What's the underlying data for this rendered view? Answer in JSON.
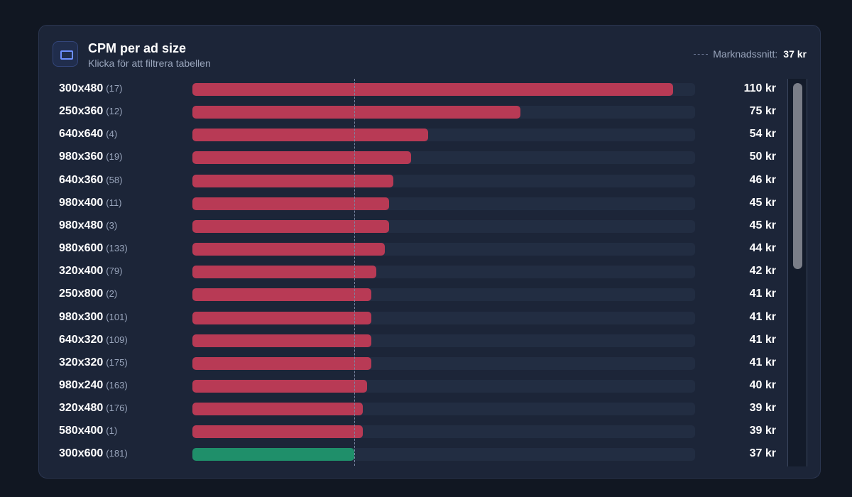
{
  "header": {
    "title": "CPM per ad size",
    "subtitle": "Klicka för att filtrera tabellen",
    "market_label": "Marknadssnitt:",
    "market_value": "37 kr"
  },
  "colors": {
    "above_average": "#b83a55",
    "at_average": "#1f8f6a"
  },
  "chart_data": {
    "type": "bar",
    "orientation": "horizontal",
    "title": "CPM per ad size",
    "unit": "kr",
    "xlim": [
      0,
      115
    ],
    "reference_line": {
      "label": "Marknadssnitt:",
      "value": 37
    },
    "categories": [
      "300x480",
      "250x360",
      "640x640",
      "980x360",
      "640x360",
      "980x400",
      "980x480",
      "980x600",
      "320x400",
      "250x800",
      "980x300",
      "640x320",
      "320x320",
      "980x240",
      "320x480",
      "580x400",
      "300x600"
    ],
    "counts": [
      "(17)",
      "(12)",
      "(4)",
      "(19)",
      "(58)",
      "(11)",
      "(3)",
      "(133)",
      "(79)",
      "(2)",
      "(101)",
      "(109)",
      "(175)",
      "(163)",
      "(176)",
      "(1)",
      "(181)"
    ],
    "values": [
      110,
      75,
      54,
      50,
      46,
      45,
      45,
      44,
      42,
      41,
      41,
      41,
      41,
      40,
      39,
      39,
      37
    ],
    "value_labels": [
      "110 kr",
      "75 kr",
      "54 kr",
      "50 kr",
      "46 kr",
      "45 kr",
      "45 kr",
      "44 kr",
      "42 kr",
      "41 kr",
      "41 kr",
      "41 kr",
      "41 kr",
      "40 kr",
      "39 kr",
      "39 kr",
      "37 kr"
    ]
  }
}
